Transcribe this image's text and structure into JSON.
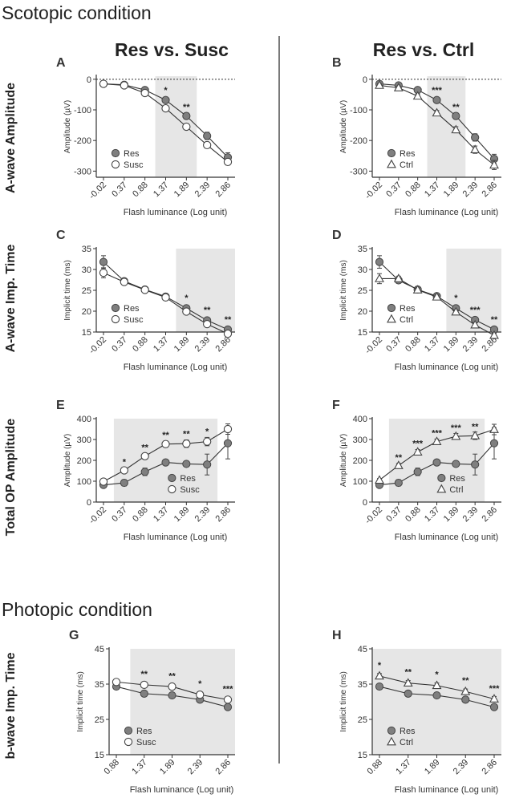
{
  "headings": {
    "scotopic": "Scotopic condition",
    "photopic": "Photopic condition",
    "col_left": "Res vs. Susc",
    "col_right": "Res vs. Ctrl"
  },
  "row_labels": {
    "a_amp": "A-wave Amplitude",
    "a_time": "A-wave Imp. Time",
    "op_amp": "Total OP Amplitude",
    "b_time": "b-wave Imp. Time"
  },
  "colors": {
    "res_fill": "#7f7f7f",
    "shade": "#e6e6e6",
    "line": "#333333"
  },
  "chart_data": [
    {
      "id": "A",
      "type": "line",
      "panel_label": "A",
      "xlabel": "Flash luminance (Log unit)",
      "ylabel": "Amplitude (µV)",
      "categories": [
        "-0.02",
        "0.37",
        "0.88",
        "1.37",
        "1.89",
        "2.39",
        "2.86"
      ],
      "ylim": [
        -320,
        10
      ],
      "yticks": [
        0,
        -100,
        -200,
        -300
      ],
      "shade": [
        3,
        4
      ],
      "zero_line": true,
      "legend": "bottom-left",
      "series": [
        {
          "name": "Res",
          "marker": "filled-circle",
          "values": [
            -15,
            -18,
            -35,
            -68,
            -120,
            -185,
            -255
          ],
          "err": [
            5,
            5,
            6,
            8,
            10,
            12,
            15
          ]
        },
        {
          "name": "Susc",
          "marker": "open-circle",
          "values": [
            -15,
            -20,
            -45,
            -95,
            -155,
            -215,
            -270
          ],
          "err": [
            5,
            5,
            6,
            8,
            9,
            10,
            10
          ]
        }
      ],
      "stars": [
        {
          "i": 3,
          "text": "*",
          "v": -45
        },
        {
          "i": 4,
          "text": "**",
          "v": -100
        }
      ]
    },
    {
      "id": "B",
      "type": "line",
      "panel_label": "B",
      "xlabel": "Flash luminance (Log unit)",
      "ylabel": "Amplitude (µV)",
      "categories": [
        "-0.02",
        "0.37",
        "0.88",
        "1.37",
        "1.89",
        "2.39",
        "2.86"
      ],
      "ylim": [
        -320,
        10
      ],
      "yticks": [
        0,
        -100,
        -200,
        -300
      ],
      "shade": [
        3,
        4
      ],
      "zero_line": true,
      "legend": "bottom-left",
      "series": [
        {
          "name": "Res",
          "marker": "filled-circle",
          "values": [
            -15,
            -20,
            -35,
            -68,
            -120,
            -190,
            -260
          ],
          "err": [
            5,
            5,
            6,
            8,
            10,
            12,
            15
          ]
        },
        {
          "name": "Ctrl",
          "marker": "open-triangle",
          "values": [
            -20,
            -28,
            -55,
            -110,
            -165,
            -230,
            -280
          ],
          "err": [
            6,
            6,
            7,
            8,
            10,
            12,
            15
          ]
        }
      ],
      "stars": [
        {
          "i": 3,
          "text": "***",
          "v": -45
        },
        {
          "i": 4,
          "text": "**",
          "v": -100
        }
      ]
    },
    {
      "id": "C",
      "type": "line",
      "panel_label": "C",
      "xlabel": "Flash luminance (Log unit)",
      "ylabel": "Implicit time (ms)",
      "categories": [
        "-0.02",
        "0.37",
        "0.88",
        "1.37",
        "1.89",
        "2.39",
        "2.86"
      ],
      "ylim": [
        15,
        35
      ],
      "yticks": [
        35,
        30,
        25,
        20,
        15
      ],
      "shade": [
        4,
        6
      ],
      "zero_line": false,
      "legend": "bottom-left",
      "series": [
        {
          "name": "Res",
          "marker": "filled-circle",
          "values": [
            31.8,
            27.2,
            25.2,
            23.5,
            20.7,
            17.8,
            15.6
          ],
          "err": [
            1.5,
            0.6,
            0.5,
            0.5,
            0.5,
            0.5,
            0.5
          ]
        },
        {
          "name": "Susc",
          "marker": "open-circle",
          "values": [
            29.2,
            27.0,
            25.1,
            23.3,
            19.9,
            16.9,
            14.6
          ],
          "err": [
            1.2,
            0.6,
            0.5,
            0.5,
            0.5,
            0.5,
            0.5
          ]
        }
      ],
      "stars": [
        {
          "i": 4,
          "text": "*",
          "v": 22.5
        },
        {
          "i": 5,
          "text": "**",
          "v": 19.6
        },
        {
          "i": 6,
          "text": "**",
          "v": 17.3
        }
      ]
    },
    {
      "id": "D",
      "type": "line",
      "panel_label": "D",
      "xlabel": "Flash luminance (Log unit)",
      "ylabel": "Implicit time (ms)",
      "categories": [
        "-0.02",
        "0.37",
        "0.88",
        "1.37",
        "1.89",
        "2.39",
        "2.86"
      ],
      "ylim": [
        15,
        35
      ],
      "yticks": [
        35,
        30,
        25,
        20,
        15
      ],
      "shade": [
        4,
        6
      ],
      "zero_line": false,
      "legend": "bottom-left",
      "series": [
        {
          "name": "Res",
          "marker": "filled-circle",
          "values": [
            31.8,
            27.4,
            25.2,
            23.6,
            20.7,
            17.9,
            15.6
          ],
          "err": [
            1.5,
            0.6,
            0.5,
            0.5,
            0.5,
            0.5,
            0.5
          ]
        },
        {
          "name": "Ctrl",
          "marker": "open-triangle",
          "values": [
            27.8,
            27.8,
            25.1,
            23.4,
            19.8,
            16.7,
            14.2
          ],
          "err": [
            1.2,
            0.6,
            0.5,
            0.5,
            0.5,
            0.5,
            0.5
          ]
        }
      ],
      "stars": [
        {
          "i": 4,
          "text": "*",
          "v": 22.5
        },
        {
          "i": 5,
          "text": "***",
          "v": 19.6
        },
        {
          "i": 6,
          "text": "**",
          "v": 17.3
        }
      ]
    },
    {
      "id": "E",
      "type": "line",
      "panel_label": "E",
      "xlabel": "Flash luminance (Log unit)",
      "ylabel": "Amplitude (µV)",
      "categories": [
        "-0.02",
        "0.37",
        "0.88",
        "1.37",
        "1.89",
        "2.39",
        "2.86"
      ],
      "ylim": [
        0,
        400
      ],
      "yticks": [
        400,
        300,
        200,
        100,
        0
      ],
      "shade": [
        1,
        5
      ],
      "zero_line": false,
      "legend": "bottom-right",
      "series": [
        {
          "name": "Res",
          "marker": "filled-circle",
          "values": [
            82,
            92,
            145,
            190,
            183,
            180,
            282
          ],
          "err": [
            10,
            15,
            18,
            12,
            12,
            50,
            75
          ]
        },
        {
          "name": "Susc",
          "marker": "open-circle",
          "values": [
            98,
            152,
            220,
            278,
            280,
            290,
            350
          ],
          "err": [
            8,
            10,
            12,
            15,
            18,
            20,
            25
          ]
        }
      ],
      "stars": [
        {
          "i": 1,
          "text": "*",
          "v": 178
        },
        {
          "i": 2,
          "text": "**",
          "v": 248
        },
        {
          "i": 3,
          "text": "**",
          "v": 308
        },
        {
          "i": 4,
          "text": "**",
          "v": 313
        },
        {
          "i": 5,
          "text": "*",
          "v": 325
        }
      ]
    },
    {
      "id": "F",
      "type": "line",
      "panel_label": "F",
      "xlabel": "Flash luminance (Log unit)",
      "ylabel": "Amplitude (µV)",
      "categories": [
        "-0.02",
        "0.37",
        "0.88",
        "1.37",
        "1.89",
        "2.39",
        "2.86"
      ],
      "ylim": [
        0,
        400
      ],
      "yticks": [
        400,
        300,
        200,
        100,
        0
      ],
      "shade": [
        1,
        5
      ],
      "zero_line": false,
      "legend": "bottom-right",
      "series": [
        {
          "name": "Res",
          "marker": "filled-circle",
          "values": [
            82,
            92,
            145,
            190,
            183,
            180,
            282
          ],
          "err": [
            10,
            15,
            18,
            12,
            12,
            50,
            75
          ]
        },
        {
          "name": "Ctrl",
          "marker": "open-triangle",
          "values": [
            105,
            175,
            240,
            290,
            315,
            318,
            348
          ],
          "err": [
            8,
            10,
            12,
            12,
            14,
            18,
            25
          ]
        }
      ],
      "stars": [
        {
          "i": 1,
          "text": "**",
          "v": 200
        },
        {
          "i": 2,
          "text": "***",
          "v": 268
        },
        {
          "i": 3,
          "text": "***",
          "v": 318
        },
        {
          "i": 4,
          "text": "***",
          "v": 343
        },
        {
          "i": 5,
          "text": "**",
          "v": 348
        }
      ]
    },
    {
      "id": "G",
      "type": "line",
      "panel_label": "G",
      "xlabel": "Flash luminance (Log unit)",
      "ylabel": "Implicit time (ms)",
      "categories": [
        "0.88",
        "1.37",
        "1.89",
        "2.39",
        "2.86"
      ],
      "ylim": [
        15,
        45
      ],
      "yticks": [
        45,
        35,
        25,
        15
      ],
      "shade": [
        1,
        4
      ],
      "zero_line": false,
      "legend": "bottom-left",
      "series": [
        {
          "name": "Res",
          "marker": "filled-circle",
          "values": [
            34.3,
            32.3,
            31.8,
            30.6,
            28.5
          ],
          "err": [
            0.6,
            0.6,
            0.6,
            0.6,
            0.6
          ]
        },
        {
          "name": "Susc",
          "marker": "open-circle",
          "values": [
            35.6,
            34.8,
            34.3,
            32.0,
            30.6
          ],
          "err": [
            0.6,
            0.6,
            0.6,
            0.6,
            0.6
          ]
        }
      ],
      "stars": [
        {
          "i": 1,
          "text": "**",
          "v": 37.0
        },
        {
          "i": 2,
          "text": "**",
          "v": 36.5
        },
        {
          "i": 3,
          "text": "*",
          "v": 34.3
        },
        {
          "i": 4,
          "text": "***",
          "v": 32.8
        }
      ]
    },
    {
      "id": "H",
      "type": "line",
      "panel_label": "H",
      "xlabel": "Flash luminance (Log unit)",
      "ylabel": "Implicit time (ms)",
      "categories": [
        "0.88",
        "1.37",
        "1.89",
        "2.39",
        "2.86"
      ],
      "ylim": [
        15,
        45
      ],
      "yticks": [
        45,
        35,
        25,
        15
      ],
      "shade": [
        0,
        4
      ],
      "zero_line": false,
      "legend": "bottom-left",
      "series": [
        {
          "name": "Res",
          "marker": "filled-circle",
          "values": [
            34.3,
            32.3,
            31.8,
            30.6,
            28.5
          ],
          "err": [
            0.6,
            0.6,
            0.6,
            0.6,
            0.6
          ]
        },
        {
          "name": "Ctrl",
          "marker": "open-triangle",
          "values": [
            37.3,
            35.3,
            34.6,
            32.9,
            30.8
          ],
          "err": [
            0.7,
            0.7,
            0.7,
            0.7,
            0.7
          ]
        }
      ],
      "stars": [
        {
          "i": 0,
          "text": "*",
          "v": 39.6
        },
        {
          "i": 1,
          "text": "**",
          "v": 37.6
        },
        {
          "i": 2,
          "text": "*",
          "v": 36.9
        },
        {
          "i": 3,
          "text": "**",
          "v": 35.2
        },
        {
          "i": 4,
          "text": "***",
          "v": 33.0
        }
      ]
    }
  ]
}
